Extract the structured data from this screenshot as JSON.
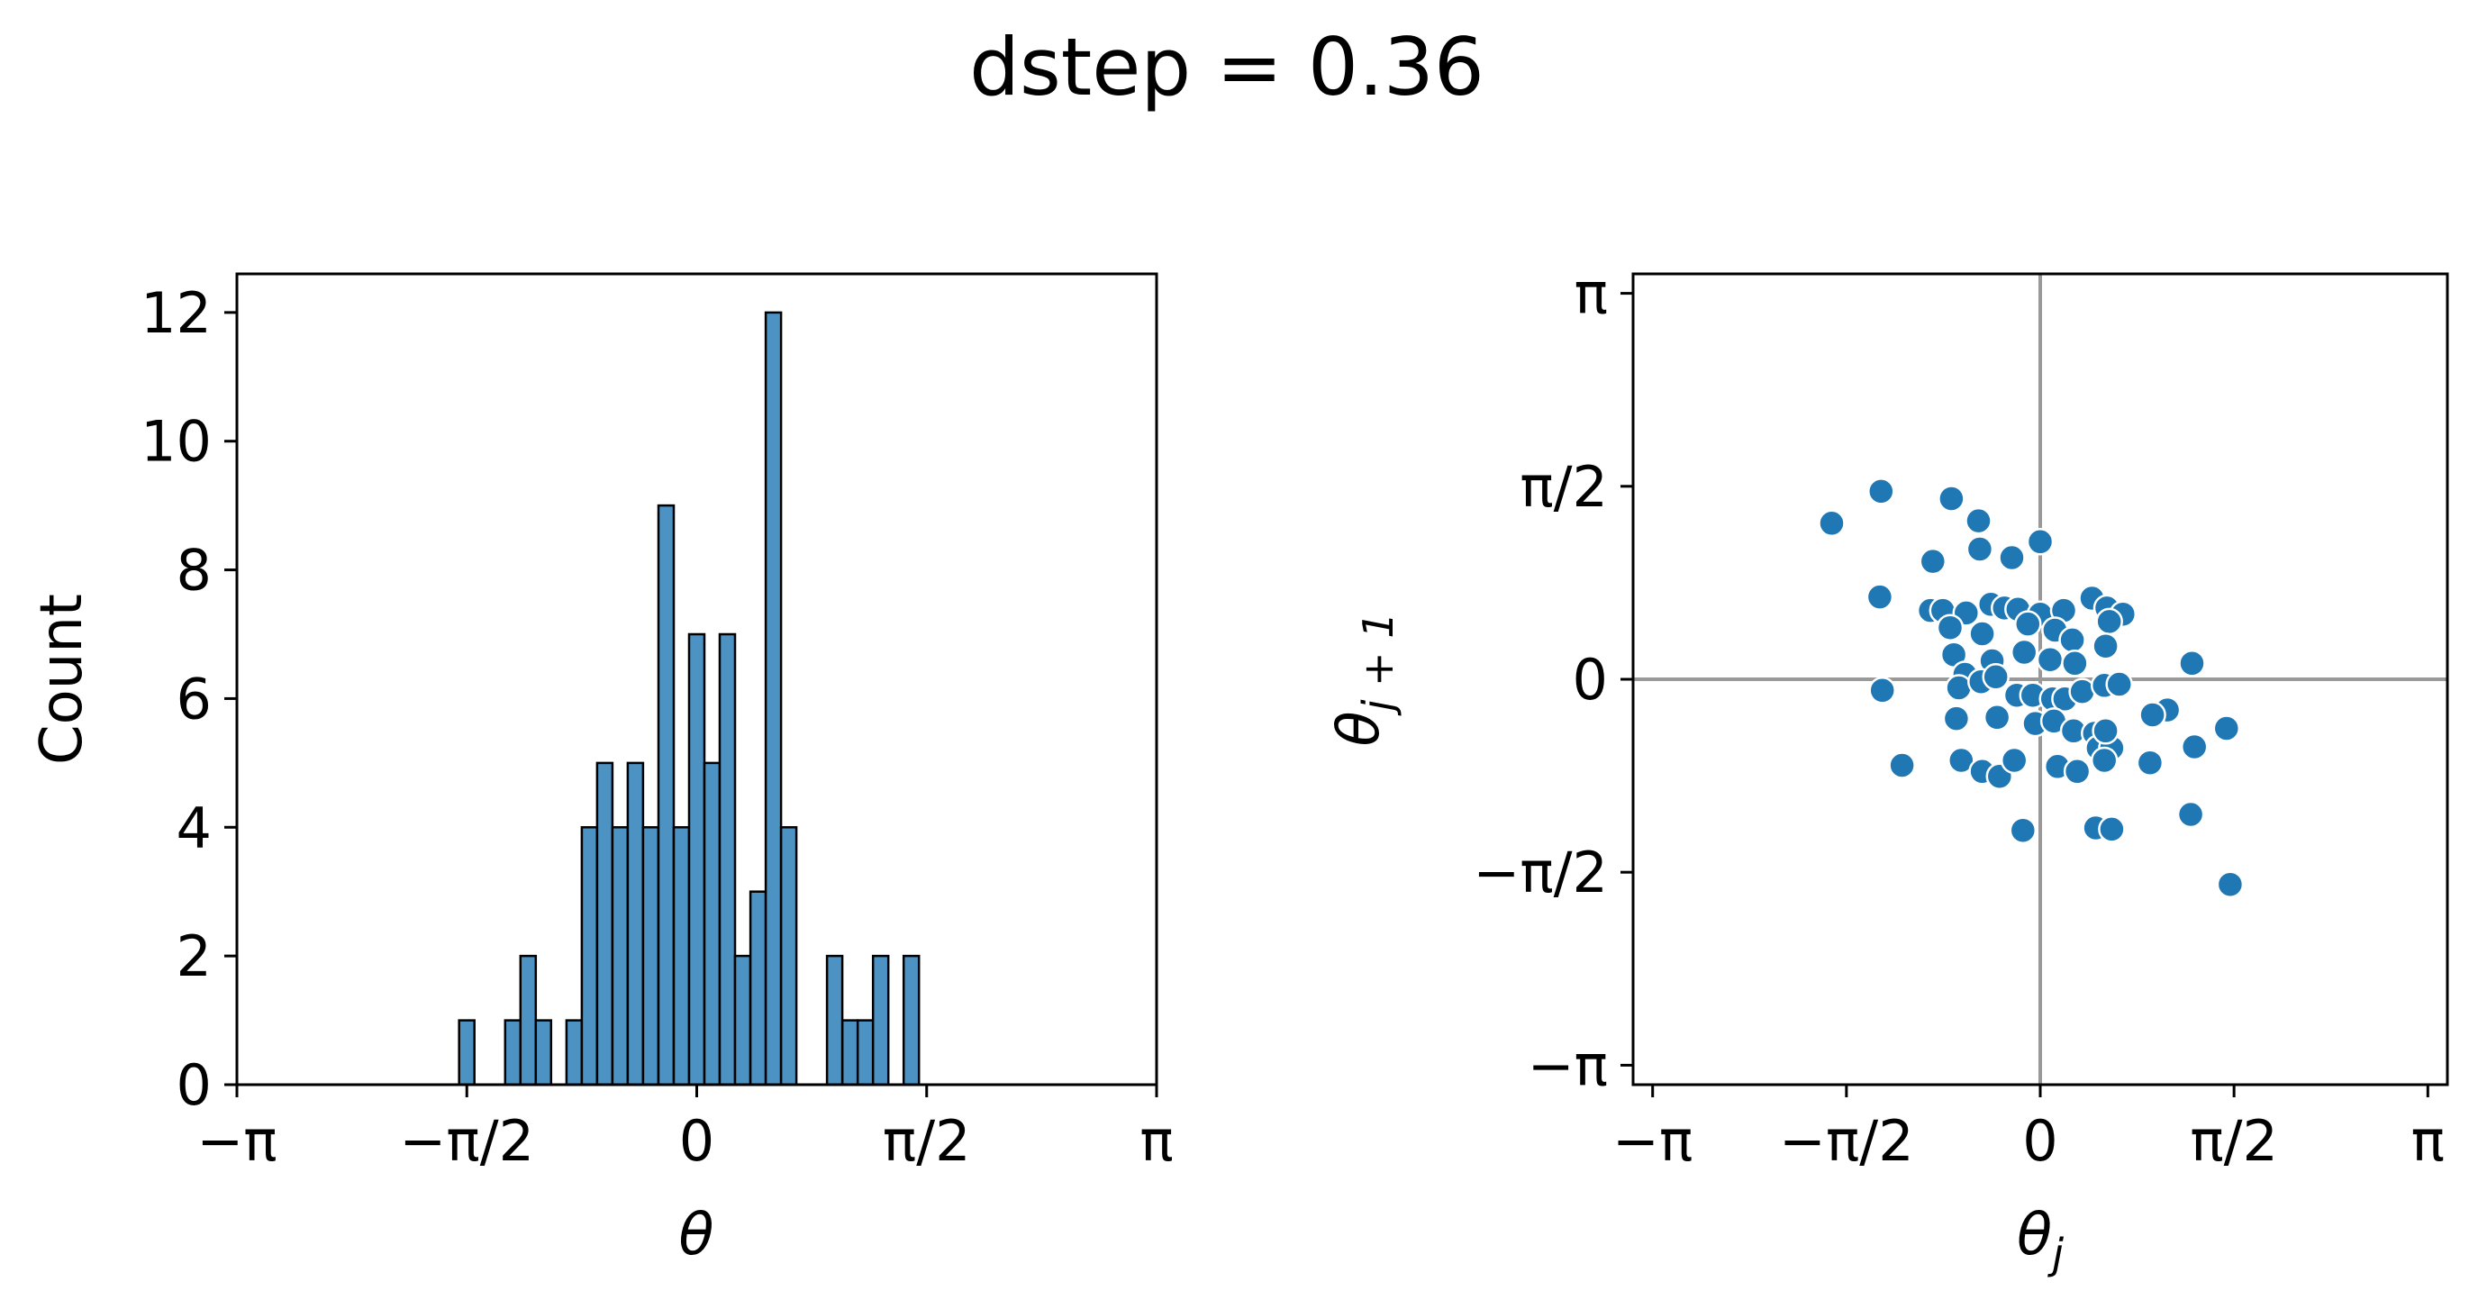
{
  "title": "dstep = 0.36",
  "colors": {
    "bar_fill": "#4c92c3",
    "bar_edge": "#000000",
    "point_fill": "#1f77b4",
    "point_edge": "#ffffff",
    "ref_line": "#999999"
  },
  "chart_data": [
    {
      "type": "bar",
      "subtype": "histogram",
      "xlabel": "θ",
      "ylabel": "Count",
      "xlim": [
        -3.14159,
        3.14159
      ],
      "ylim": [
        0,
        12.6
      ],
      "bin_width": 0.1047,
      "xticks": [
        -3.14159,
        -1.5708,
        0,
        1.5708,
        3.14159
      ],
      "xtick_labels": [
        "−π",
        "−π/2",
        "0",
        "π/2",
        "π"
      ],
      "yticks": [
        0,
        2,
        4,
        6,
        8,
        10,
        12
      ],
      "ytick_labels": [
        "0",
        "2",
        "4",
        "6",
        "8",
        "10",
        "12"
      ],
      "bins": [
        {
          "x": -1.6232,
          "count": 1
        },
        {
          "x": -1.309,
          "count": 1
        },
        {
          "x": -1.2043,
          "count": 2
        },
        {
          "x": -1.0996,
          "count": 1
        },
        {
          "x": -0.8901,
          "count": 1
        },
        {
          "x": -0.7854,
          "count": 4
        },
        {
          "x": -0.6807,
          "count": 5
        },
        {
          "x": -0.576,
          "count": 4
        },
        {
          "x": -0.4712,
          "count": 5
        },
        {
          "x": -0.3665,
          "count": 4
        },
        {
          "x": -0.2618,
          "count": 9
        },
        {
          "x": -0.1571,
          "count": 4
        },
        {
          "x": -0.0524,
          "count": 7
        },
        {
          "x": 0.0524,
          "count": 5
        },
        {
          "x": 0.1571,
          "count": 7
        },
        {
          "x": 0.2618,
          "count": 2
        },
        {
          "x": 0.3665,
          "count": 3
        },
        {
          "x": 0.4712,
          "count": 12
        },
        {
          "x": 0.576,
          "count": 4
        },
        {
          "x": 0.8901,
          "count": 2
        },
        {
          "x": 0.9948,
          "count": 1
        },
        {
          "x": 1.0996,
          "count": 1
        },
        {
          "x": 1.2043,
          "count": 2
        },
        {
          "x": 1.4137,
          "count": 2
        }
      ]
    },
    {
      "type": "scatter",
      "xlabel": "θ_j",
      "ylabel": "θ_j+1",
      "xlim": [
        -3.3,
        3.3
      ],
      "ylim": [
        -3.3,
        3.3
      ],
      "xticks": [
        -3.14159,
        -1.5708,
        0,
        1.5708,
        3.14159
      ],
      "xtick_labels": [
        "−π",
        "−π/2",
        "0",
        "π/2",
        "π"
      ],
      "yticks": [
        -3.14159,
        -1.5708,
        0,
        1.5708,
        3.14159
      ],
      "ytick_labels": [
        "−π",
        "−π/2",
        "0",
        "π/2",
        "π"
      ],
      "ref_lines": {
        "x": 0,
        "y": 0
      },
      "points": [
        [
          -1.69,
          1.27
        ],
        [
          -1.29,
          1.53
        ],
        [
          -0.72,
          1.47
        ],
        [
          -0.5,
          1.29
        ],
        [
          -0.49,
          1.06
        ],
        [
          0.0,
          1.12
        ],
        [
          -0.87,
          0.96
        ],
        [
          -0.23,
          0.99
        ],
        [
          -1.3,
          0.67
        ],
        [
          -0.89,
          0.56
        ],
        [
          -0.79,
          0.56
        ],
        [
          -0.6,
          0.54
        ],
        [
          -0.4,
          0.61
        ],
        [
          -0.29,
          0.58
        ],
        [
          -0.18,
          0.57
        ],
        [
          0.0,
          0.53
        ],
        [
          0.19,
          0.56
        ],
        [
          0.42,
          0.66
        ],
        [
          0.54,
          0.58
        ],
        [
          0.67,
          0.53
        ],
        [
          0.56,
          0.47
        ],
        [
          -0.73,
          0.42
        ],
        [
          -0.47,
          0.37
        ],
        [
          -0.1,
          0.45
        ],
        [
          0.12,
          0.4
        ],
        [
          0.26,
          0.32
        ],
        [
          0.53,
          0.27
        ],
        [
          -0.7,
          0.2
        ],
        [
          -0.39,
          0.15
        ],
        [
          -0.13,
          0.22
        ],
        [
          0.08,
          0.16
        ],
        [
          0.28,
          0.13
        ],
        [
          -0.61,
          0.04
        ],
        [
          -0.66,
          -0.07
        ],
        [
          -0.48,
          -0.02
        ],
        [
          -0.36,
          0.02
        ],
        [
          -0.19,
          -0.13
        ],
        [
          -0.06,
          -0.13
        ],
        [
          0.1,
          -0.16
        ],
        [
          0.2,
          -0.16
        ],
        [
          0.34,
          -0.1
        ],
        [
          0.52,
          -0.05
        ],
        [
          0.64,
          -0.04
        ],
        [
          1.23,
          0.13
        ],
        [
          1.03,
          -0.25
        ],
        [
          0.91,
          -0.29
        ],
        [
          -1.28,
          -0.09
        ],
        [
          -0.68,
          -0.32
        ],
        [
          -0.35,
          -0.31
        ],
        [
          -0.04,
          -0.36
        ],
        [
          0.11,
          -0.34
        ],
        [
          0.27,
          -0.42
        ],
        [
          0.44,
          -0.44
        ],
        [
          0.47,
          -0.56
        ],
        [
          0.58,
          -0.56
        ],
        [
          0.53,
          -0.42
        ],
        [
          1.25,
          -0.55
        ],
        [
          1.51,
          -0.4
        ],
        [
          -1.12,
          -0.7
        ],
        [
          -0.64,
          -0.66
        ],
        [
          -0.47,
          -0.75
        ],
        [
          -0.33,
          -0.79
        ],
        [
          -0.21,
          -0.66
        ],
        [
          0.14,
          -0.71
        ],
        [
          0.3,
          -0.75
        ],
        [
          0.52,
          -0.66
        ],
        [
          0.89,
          -0.68
        ],
        [
          -0.14,
          -1.23
        ],
        [
          0.45,
          -1.21
        ],
        [
          0.58,
          -1.22
        ],
        [
          1.22,
          -1.1
        ],
        [
          1.54,
          -1.67
        ]
      ]
    }
  ]
}
